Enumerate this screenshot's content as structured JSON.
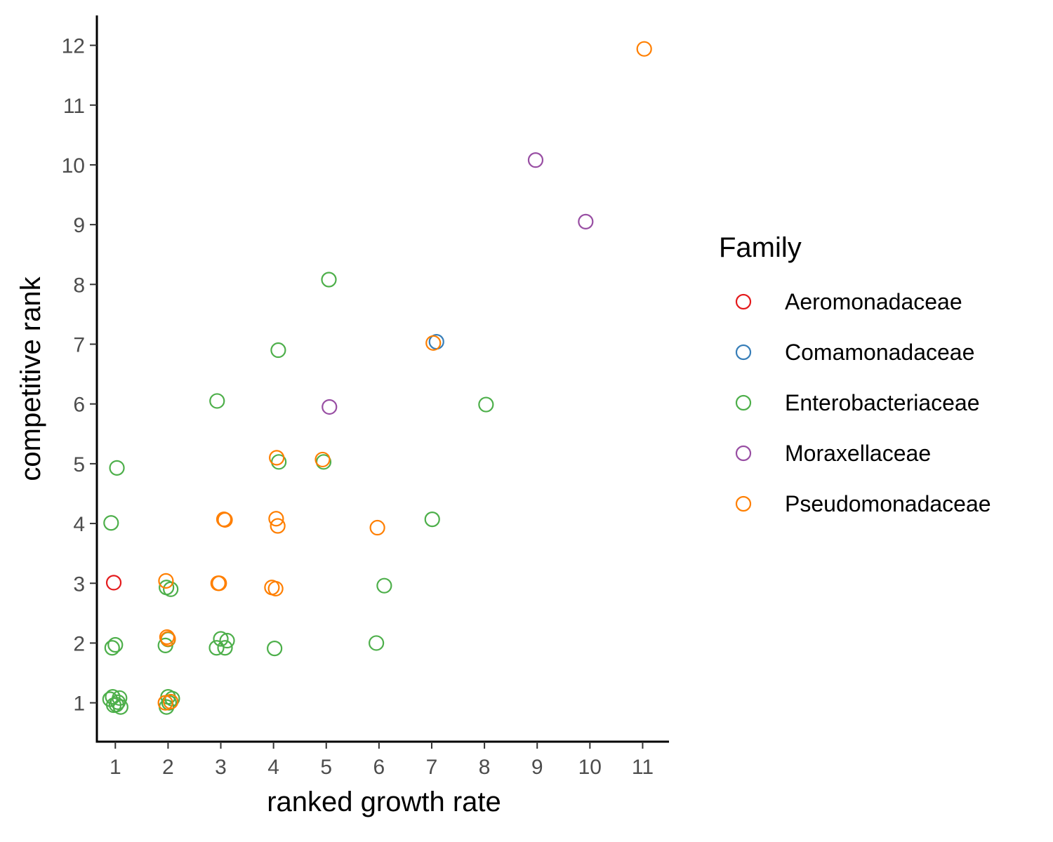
{
  "chart_data": {
    "type": "scatter",
    "title": "",
    "xlabel": "ranked growth rate",
    "ylabel": "competitive rank",
    "xlim": [
      0.65,
      11.5
    ],
    "ylim": [
      0.35,
      12.5
    ],
    "x_ticks": [
      "1",
      "2",
      "3",
      "4",
      "5",
      "6",
      "7",
      "8",
      "9",
      "10",
      "11"
    ],
    "y_ticks": [
      "1",
      "2",
      "3",
      "4",
      "5",
      "6",
      "7",
      "8",
      "9",
      "10",
      "11",
      "12"
    ],
    "grid": false,
    "marker": "open-circle",
    "legend": {
      "title": "Family",
      "position": "right"
    },
    "series": [
      {
        "name": "Aeromonadaceae",
        "color": "#e41a1c",
        "points": [
          [
            0.97,
            3.01
          ]
        ]
      },
      {
        "name": "Comamonadaceae",
        "color": "#377eb8",
        "points": [
          [
            7.09,
            7.04
          ]
        ]
      },
      {
        "name": "Enterobacteriaceae",
        "color": "#4daf4a",
        "points": [
          [
            0.92,
            4.01
          ],
          [
            1.03,
            4.93
          ],
          [
            0.94,
            1.92
          ],
          [
            1.0,
            1.97
          ],
          [
            0.9,
            1.06
          ],
          [
            0.95,
            1.1
          ],
          [
            1.05,
            1.01
          ],
          [
            0.97,
            0.96
          ],
          [
            1.08,
            1.08
          ],
          [
            1.02,
            0.97
          ],
          [
            1.1,
            0.93
          ],
          [
            1.95,
            1.96
          ],
          [
            2.0,
            2.06
          ],
          [
            1.97,
            2.93
          ],
          [
            2.05,
            2.9
          ],
          [
            2.0,
            1.1
          ],
          [
            2.08,
            1.07
          ],
          [
            1.97,
            0.93
          ],
          [
            2.02,
            1.0
          ],
          [
            2.93,
            6.05
          ],
          [
            2.92,
            1.92
          ],
          [
            3.0,
            2.07
          ],
          [
            3.08,
            1.92
          ],
          [
            3.12,
            2.04
          ],
          [
            4.09,
            6.9
          ],
          [
            4.02,
            1.91
          ],
          [
            4.1,
            5.03
          ],
          [
            5.05,
            8.08
          ],
          [
            4.95,
            5.03
          ],
          [
            5.95,
            2.0
          ],
          [
            6.1,
            2.96
          ],
          [
            7.01,
            4.07
          ],
          [
            8.03,
            5.99
          ]
        ]
      },
      {
        "name": "Moraxellaceae",
        "color": "#984ea3",
        "points": [
          [
            8.97,
            10.08
          ],
          [
            9.92,
            9.05
          ],
          [
            5.06,
            5.95
          ]
        ]
      },
      {
        "name": "Pseudomonadaceae",
        "color": "#ff7f00",
        "points": [
          [
            11.03,
            11.94
          ],
          [
            7.03,
            7.02
          ],
          [
            4.06,
            5.1
          ],
          [
            4.93,
            5.07
          ],
          [
            3.08,
            4.06
          ],
          [
            3.06,
            4.07
          ],
          [
            4.05,
            4.08
          ],
          [
            4.08,
            3.96
          ],
          [
            5.97,
            3.93
          ],
          [
            1.96,
            3.04
          ],
          [
            2.95,
            3.0
          ],
          [
            2.97,
            3.0
          ],
          [
            3.97,
            2.93
          ],
          [
            4.04,
            2.91
          ],
          [
            1.98,
            2.1
          ],
          [
            2.0,
            2.07
          ],
          [
            1.95,
            1.0
          ],
          [
            2.05,
            1.02
          ]
        ]
      }
    ]
  }
}
